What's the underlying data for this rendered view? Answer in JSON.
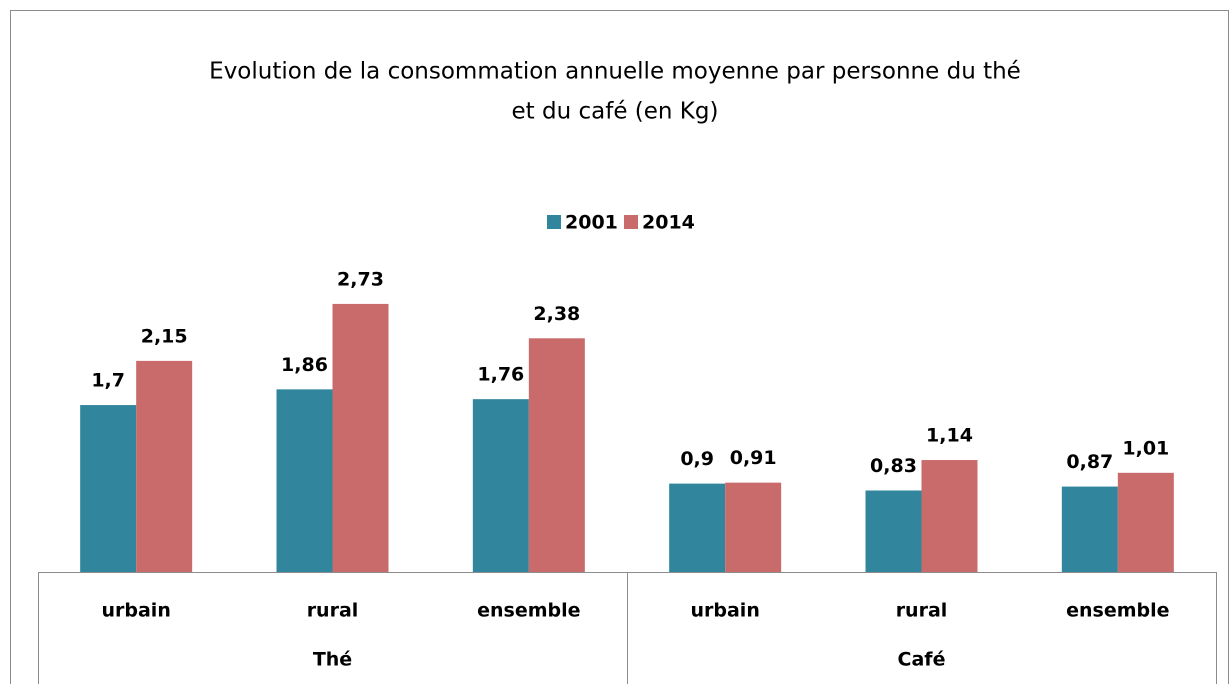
{
  "chart_data": {
    "type": "bar",
    "title": [
      "Evolution de la consommation annuelle moyenne par personne du thé",
      "et du café (en Kg)"
    ],
    "groups": [
      {
        "name": "Thé",
        "categories": [
          "urbain",
          "rural",
          "ensemble"
        ]
      },
      {
        "name": "Café",
        "categories": [
          "urbain",
          "rural",
          "ensemble"
        ]
      }
    ],
    "series": [
      {
        "name": "2001",
        "color": "#31859c",
        "values": [
          1.7,
          1.86,
          1.76,
          0.9,
          0.83,
          0.87
        ],
        "value_labels": [
          "1,7",
          "1,86",
          "1,76",
          "0,9",
          "0,83",
          "0,87"
        ]
      },
      {
        "name": "2014",
        "color": "#c96b6b",
        "values": [
          2.15,
          2.73,
          2.38,
          0.91,
          1.14,
          1.01
        ],
        "value_labels": [
          "2,15",
          "2,73",
          "2,38",
          "0,91",
          "1,14",
          "1,01"
        ]
      }
    ],
    "ylim": [
      0,
      3
    ],
    "legend": "top"
  }
}
